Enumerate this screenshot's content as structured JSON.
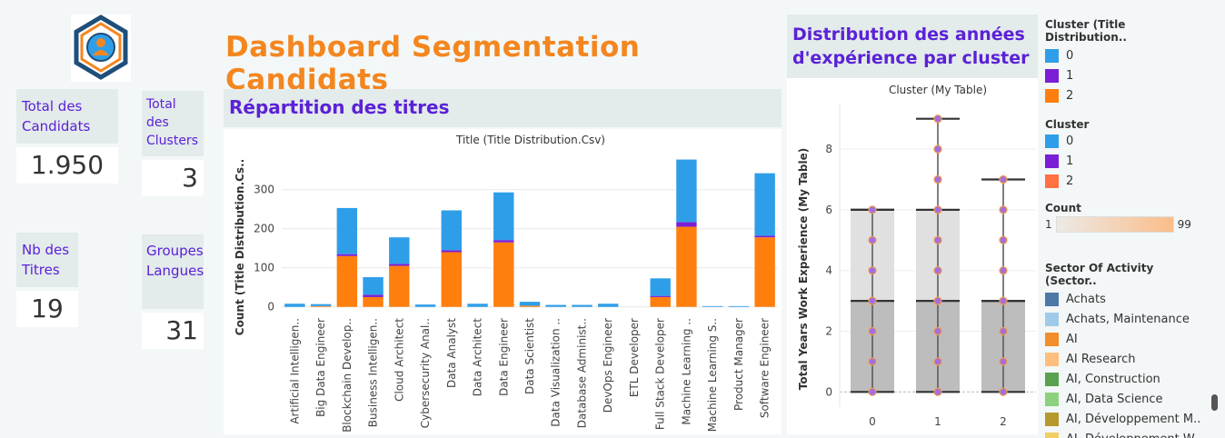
{
  "header": {
    "title": "Dashboard Segmentation Candidats"
  },
  "kpis": [
    {
      "label": "Total des Candidats",
      "value": "1.950"
    },
    {
      "label": "Total des Clusters",
      "value": "3"
    },
    {
      "label": "Nb des Titres",
      "value": "19"
    },
    {
      "label": "Groupes Langues",
      "value": "31"
    }
  ],
  "bar_panel": {
    "heading": "Répartition des titres",
    "chart_title": "Title (Title Distribution.Csv)",
    "ylabel": "Count (Title Distribution.Cs.."
  },
  "box_panel": {
    "heading_line1": "Distribution des années",
    "heading_line2": "d'expérience par cluster",
    "chart_title": "Cluster (My Table)",
    "ylabel": "Total Years Work Experience (My Table)"
  },
  "legend": {
    "cluster_title_dist": {
      "title": "Cluster (Title Distribution..",
      "items": [
        {
          "label": "0",
          "color": "#2f9ee8"
        },
        {
          "label": "1",
          "color": "#7b1fd6"
        },
        {
          "label": "2",
          "color": "#ff7f0e"
        }
      ]
    },
    "cluster": {
      "title": "Cluster",
      "items": [
        {
          "label": "0",
          "color": "#2f9ee8"
        },
        {
          "label": "1",
          "color": "#7b1fd6"
        },
        {
          "label": "2",
          "color": "#ff7043"
        }
      ]
    },
    "count": {
      "title": "Count",
      "min": "1",
      "max": "99"
    },
    "sector": {
      "title": "Sector Of Activity (Sector..",
      "items": [
        {
          "label": "Achats",
          "color": "#4e79a7"
        },
        {
          "label": "Achats, Maintenance",
          "color": "#a0cbe8"
        },
        {
          "label": "AI",
          "color": "#f28e2b"
        },
        {
          "label": "AI Research",
          "color": "#ffbe7d"
        },
        {
          "label": "AI, Construction",
          "color": "#59a14f"
        },
        {
          "label": "AI, Data Science",
          "color": "#8cd17d"
        },
        {
          "label": "AI, Développement M..",
          "color": "#b6992d"
        },
        {
          "label": "AI, Développement W..",
          "color": "#f1ce63"
        }
      ]
    }
  },
  "chart_data": [
    {
      "type": "bar",
      "title": "Title (Title Distribution.Csv)",
      "ylabel": "Count (Title Distribution.Cs..",
      "ylim": [
        -10,
        390
      ],
      "yticks": [
        0,
        100,
        200,
        300
      ],
      "stacked": true,
      "categories": [
        "Artificial Intelligen..",
        "Big Data Engineer",
        "Blockchain Develop..",
        "Business Intelligen..",
        "Cloud Architect",
        "Cybersecurity Anal..",
        "Data Analyst",
        "Data Architect",
        "Data Engineer",
        "Data Scientist",
        "Data Visualization ..",
        "Database Administ..",
        "DevOps Engineer",
        "ETL Developer",
        "Full Stack Developer",
        "Machine Learning ..",
        "Machine Learning S..",
        "Product Manager",
        "Software Engineer"
      ],
      "series": [
        {
          "name": "2",
          "color": "#ff7f0e",
          "values": [
            0,
            2,
            130,
            25,
            105,
            0,
            140,
            0,
            165,
            3,
            0,
            0,
            0,
            0,
            25,
            205,
            0,
            0,
            178
          ]
        },
        {
          "name": "1",
          "color": "#7b1fd6",
          "values": [
            0,
            0,
            5,
            6,
            5,
            0,
            5,
            0,
            6,
            0,
            0,
            0,
            0,
            0,
            3,
            12,
            0,
            0,
            4
          ]
        },
        {
          "name": "0",
          "color": "#2f9ee8",
          "values": [
            8,
            5,
            118,
            45,
            68,
            6,
            102,
            8,
            122,
            10,
            5,
            5,
            8,
            0,
            45,
            160,
            2,
            2,
            160
          ]
        }
      ]
    },
    {
      "type": "box",
      "title": "Cluster (My Table)",
      "ylabel": "Total Years Work Experience (My Table)",
      "categories": [
        "0",
        "1",
        "2"
      ],
      "ylim": [
        -0.5,
        9.5
      ],
      "yticks": [
        0,
        2,
        4,
        6,
        8
      ],
      "boxes": [
        {
          "min": 0,
          "q1": 0,
          "median": 3,
          "q3": 6,
          "max": 6,
          "points": [
            0,
            1,
            2,
            3,
            4,
            5,
            6
          ]
        },
        {
          "min": 0,
          "q1": 0,
          "median": 3,
          "q3": 6,
          "max": 9,
          "points": [
            0,
            1,
            2,
            3,
            4,
            5,
            6,
            7,
            8,
            9
          ]
        },
        {
          "min": 0,
          "q1": 0,
          "median": 3,
          "q3": 3,
          "max": 7,
          "points": [
            0,
            1,
            2,
            3,
            4,
            5,
            6,
            7
          ]
        }
      ]
    }
  ]
}
